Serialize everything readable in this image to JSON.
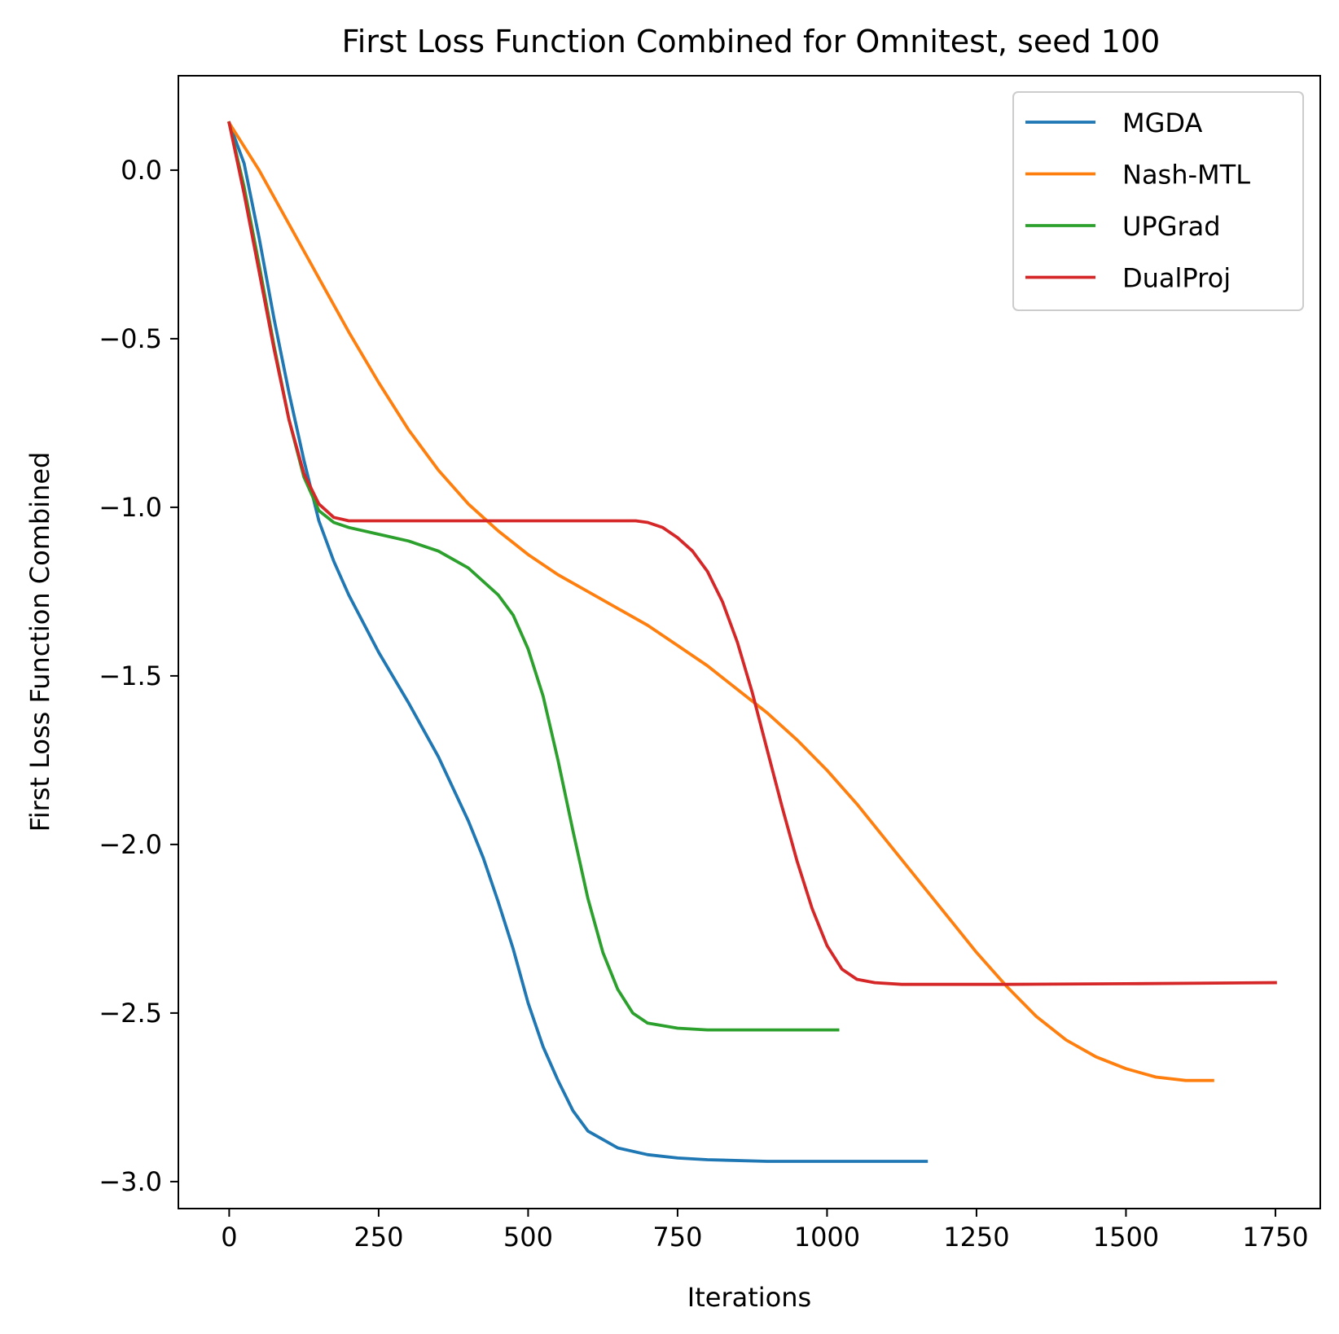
{
  "chart_data": {
    "type": "line",
    "title": "First Loss Function Combined for Omnitest, seed 100",
    "xlabel": "Iterations",
    "ylabel": "First Loss Function Combined",
    "xlim": [
      -85,
      1825
    ],
    "ylim": [
      -3.08,
      0.28
    ],
    "x_ticks": [
      0,
      250,
      500,
      750,
      1000,
      1250,
      1500,
      1750
    ],
    "x_tick_labels": [
      "0",
      "250",
      "500",
      "750",
      "1000",
      "1250",
      "1500",
      "1750"
    ],
    "y_ticks": [
      0.0,
      -0.5,
      -1.0,
      -1.5,
      -2.0,
      -2.5,
      -3.0
    ],
    "y_tick_labels": [
      "0.0",
      "−0.5",
      "−1.0",
      "−1.5",
      "−2.0",
      "−2.5",
      "−3.0"
    ],
    "grid": false,
    "legend_position": "top-right",
    "series": [
      {
        "name": "MGDA",
        "color": "#1f77b4",
        "points": [
          [
            0,
            0.14
          ],
          [
            25,
            0.02
          ],
          [
            50,
            -0.2
          ],
          [
            75,
            -0.44
          ],
          [
            100,
            -0.66
          ],
          [
            125,
            -0.86
          ],
          [
            150,
            -1.04
          ],
          [
            175,
            -1.16
          ],
          [
            200,
            -1.26
          ],
          [
            250,
            -1.43
          ],
          [
            300,
            -1.58
          ],
          [
            350,
            -1.74
          ],
          [
            400,
            -1.93
          ],
          [
            425,
            -2.04
          ],
          [
            450,
            -2.17
          ],
          [
            475,
            -2.31
          ],
          [
            500,
            -2.47
          ],
          [
            525,
            -2.6
          ],
          [
            550,
            -2.7
          ],
          [
            575,
            -2.79
          ],
          [
            600,
            -2.85
          ],
          [
            650,
            -2.9
          ],
          [
            700,
            -2.92
          ],
          [
            750,
            -2.93
          ],
          [
            800,
            -2.935
          ],
          [
            900,
            -2.94
          ],
          [
            1000,
            -2.94
          ],
          [
            1166,
            -2.94
          ]
        ]
      },
      {
        "name": "Nash-MTL",
        "color": "#ff7f0e",
        "points": [
          [
            0,
            0.14
          ],
          [
            50,
            0.0
          ],
          [
            100,
            -0.16
          ],
          [
            150,
            -0.32
          ],
          [
            200,
            -0.48
          ],
          [
            250,
            -0.63
          ],
          [
            300,
            -0.77
          ],
          [
            350,
            -0.89
          ],
          [
            400,
            -0.99
          ],
          [
            450,
            -1.07
          ],
          [
            500,
            -1.14
          ],
          [
            550,
            -1.2
          ],
          [
            600,
            -1.25
          ],
          [
            650,
            -1.3
          ],
          [
            700,
            -1.35
          ],
          [
            750,
            -1.41
          ],
          [
            800,
            -1.47
          ],
          [
            850,
            -1.54
          ],
          [
            900,
            -1.61
          ],
          [
            950,
            -1.69
          ],
          [
            1000,
            -1.78
          ],
          [
            1050,
            -1.88
          ],
          [
            1100,
            -1.99
          ],
          [
            1150,
            -2.1
          ],
          [
            1200,
            -2.21
          ],
          [
            1250,
            -2.32
          ],
          [
            1300,
            -2.42
          ],
          [
            1350,
            -2.51
          ],
          [
            1400,
            -2.58
          ],
          [
            1450,
            -2.63
          ],
          [
            1500,
            -2.665
          ],
          [
            1550,
            -2.69
          ],
          [
            1600,
            -2.7
          ],
          [
            1645,
            -2.7
          ]
        ]
      },
      {
        "name": "UPGrad",
        "color": "#2ca02c",
        "points": [
          [
            0,
            0.14
          ],
          [
            25,
            -0.05
          ],
          [
            50,
            -0.28
          ],
          [
            75,
            -0.52
          ],
          [
            100,
            -0.74
          ],
          [
            125,
            -0.91
          ],
          [
            150,
            -1.01
          ],
          [
            175,
            -1.045
          ],
          [
            200,
            -1.06
          ],
          [
            250,
            -1.08
          ],
          [
            300,
            -1.1
          ],
          [
            350,
            -1.13
          ],
          [
            400,
            -1.18
          ],
          [
            450,
            -1.26
          ],
          [
            475,
            -1.32
          ],
          [
            500,
            -1.42
          ],
          [
            525,
            -1.56
          ],
          [
            550,
            -1.75
          ],
          [
            575,
            -1.96
          ],
          [
            600,
            -2.16
          ],
          [
            625,
            -2.32
          ],
          [
            650,
            -2.43
          ],
          [
            675,
            -2.5
          ],
          [
            700,
            -2.53
          ],
          [
            750,
            -2.545
          ],
          [
            800,
            -2.55
          ],
          [
            900,
            -2.55
          ],
          [
            1018,
            -2.55
          ]
        ]
      },
      {
        "name": "DualProj",
        "color": "#d62728",
        "points": [
          [
            0,
            0.14
          ],
          [
            25,
            -0.07
          ],
          [
            50,
            -0.3
          ],
          [
            75,
            -0.53
          ],
          [
            100,
            -0.74
          ],
          [
            125,
            -0.9
          ],
          [
            150,
            -0.99
          ],
          [
            175,
            -1.03
          ],
          [
            200,
            -1.04
          ],
          [
            300,
            -1.04
          ],
          [
            400,
            -1.04
          ],
          [
            500,
            -1.04
          ],
          [
            600,
            -1.04
          ],
          [
            680,
            -1.04
          ],
          [
            700,
            -1.045
          ],
          [
            725,
            -1.06
          ],
          [
            750,
            -1.09
          ],
          [
            775,
            -1.13
          ],
          [
            800,
            -1.19
          ],
          [
            825,
            -1.28
          ],
          [
            850,
            -1.4
          ],
          [
            875,
            -1.55
          ],
          [
            900,
            -1.72
          ],
          [
            925,
            -1.89
          ],
          [
            950,
            -2.05
          ],
          [
            975,
            -2.19
          ],
          [
            1000,
            -2.3
          ],
          [
            1025,
            -2.37
          ],
          [
            1050,
            -2.4
          ],
          [
            1080,
            -2.41
          ],
          [
            1125,
            -2.415
          ],
          [
            1300,
            -2.415
          ],
          [
            1500,
            -2.413
          ],
          [
            1750,
            -2.41
          ]
        ]
      }
    ]
  }
}
